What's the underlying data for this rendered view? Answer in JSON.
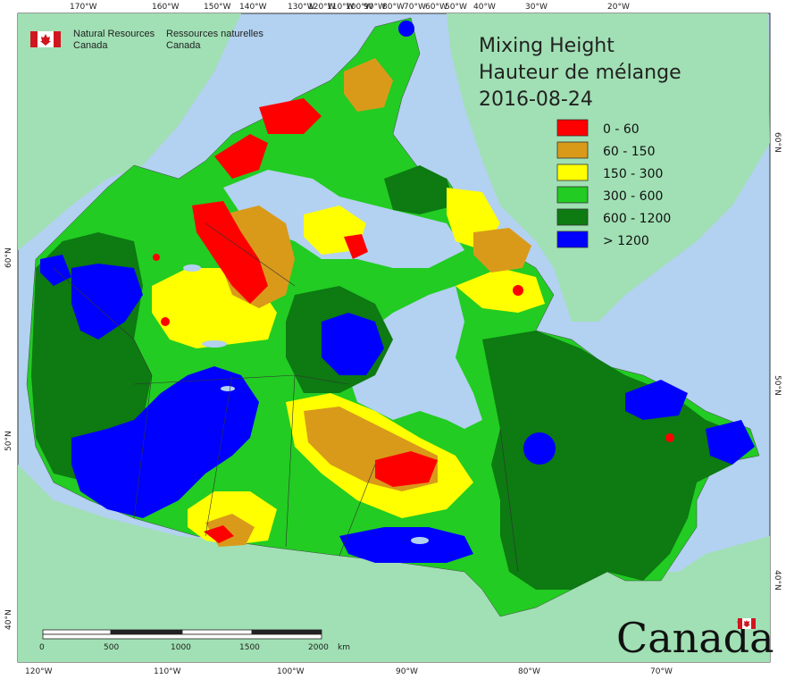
{
  "title": {
    "line1": "Mixing Height",
    "line2": "Hauteur de mélange",
    "date": "2016-08-24"
  },
  "agency": {
    "en_line1": "Natural Resources",
    "en_line2": "Canada",
    "fr_line1": "Ressources naturelles",
    "fr_line2": "Canada"
  },
  "wordmark": "Canada",
  "legend": [
    {
      "label": "0 - 60",
      "color": "#ff0000"
    },
    {
      "label": "60 - 150",
      "color": "#d99a1a"
    },
    {
      "label": "150 - 300",
      "color": "#ffff00"
    },
    {
      "label": "300 - 600",
      "color": "#22cc22"
    },
    {
      "label": "600 - 1200",
      "color": "#0d7a12"
    },
    {
      "label": "> 1200",
      "color": "#0000ff"
    }
  ],
  "top_longitudes": [
    "170°W",
    "160°W",
    "150°W",
    "140°W",
    "130°W",
    "120°W",
    "110°W",
    "100°W",
    "90°W",
    "80°W",
    "70°W",
    "60°W",
    "50°W",
    "40°W",
    "30°W",
    "20°W"
  ],
  "bottom_longitudes": [
    "120°W",
    "110°W",
    "100°W",
    "90°W",
    "80°W",
    "70°W"
  ],
  "left_latitudes": [
    "60°N",
    "50°N",
    "40°N"
  ],
  "right_latitudes": [
    "60°N",
    "50°N",
    "40°N"
  ],
  "scale_bar": {
    "ticks": [
      "0",
      "500",
      "1000",
      "1500",
      "2000"
    ],
    "unit": "km"
  },
  "colors": {
    "ocean": "#b3d1f0",
    "land_outside": "#a0e0b4",
    "frame": "#333333"
  }
}
